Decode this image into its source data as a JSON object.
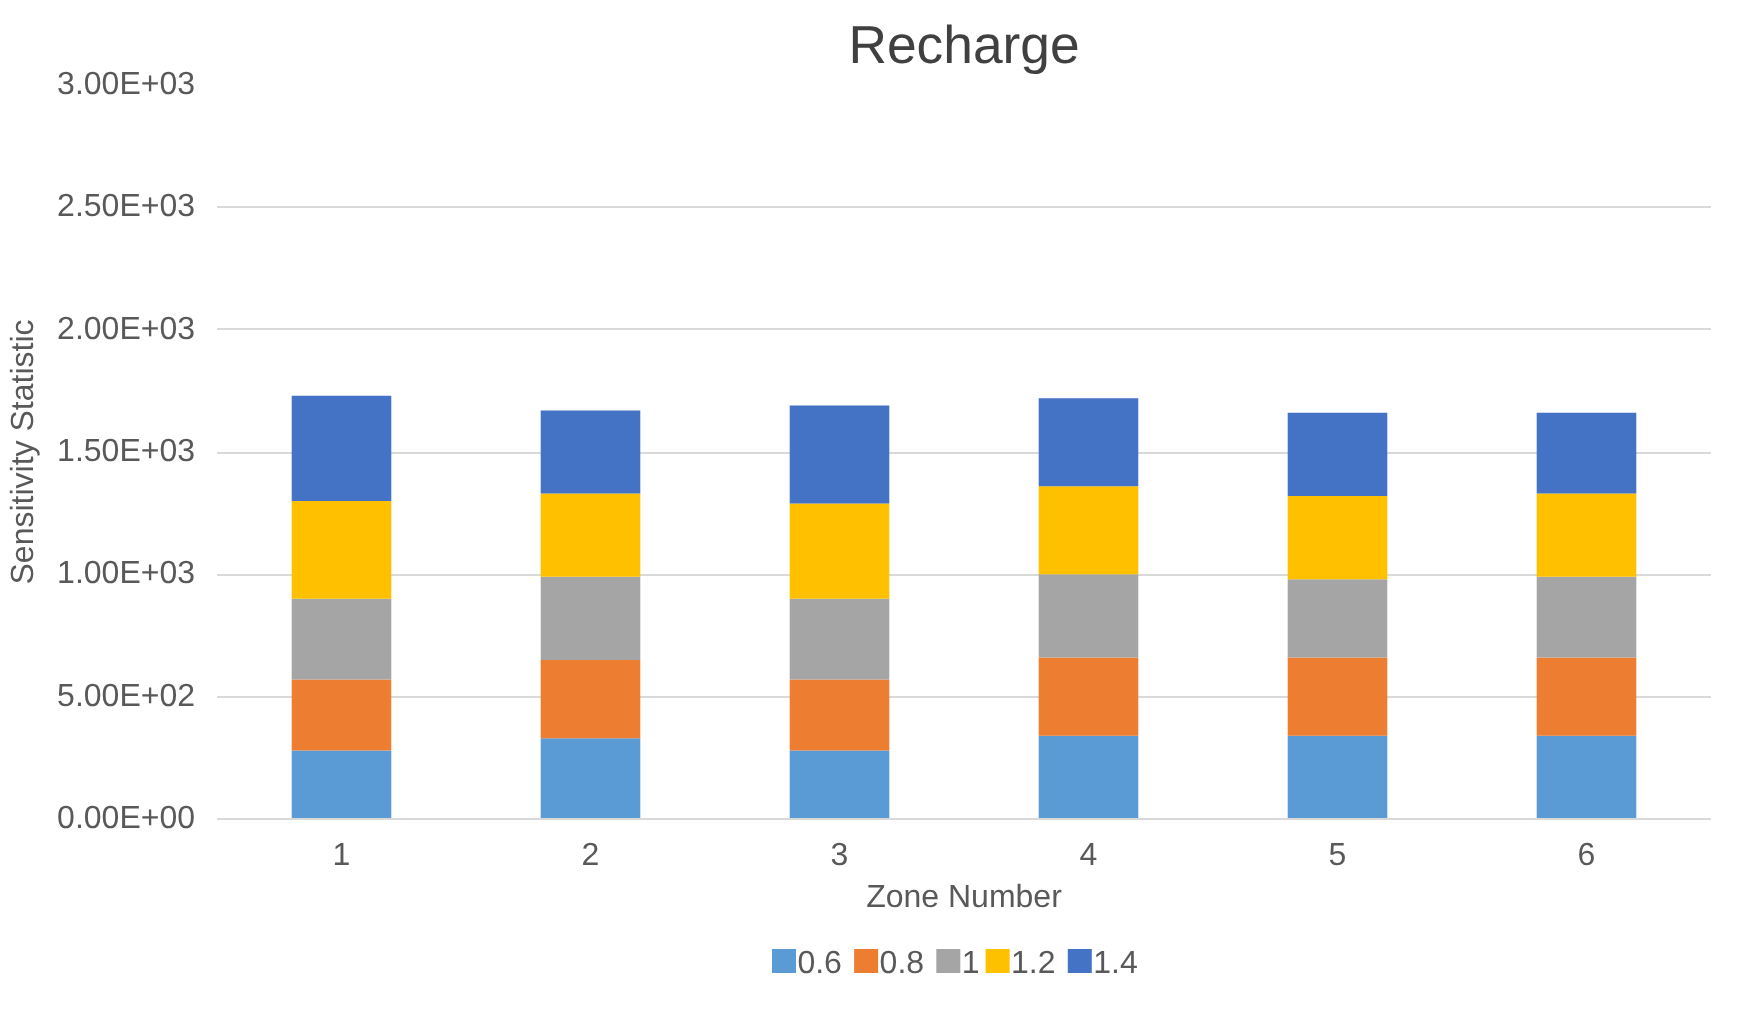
{
  "chart_data": {
    "type": "bar",
    "title": "Recharge",
    "xlabel": "Zone Number",
    "ylabel": "Sensitivity Statistic",
    "categories": [
      "1",
      "2",
      "3",
      "4",
      "5",
      "6"
    ],
    "stacked": true,
    "ylim": [
      0,
      3000
    ],
    "yticks": [
      {
        "value": 0,
        "label": "0.00E+00"
      },
      {
        "value": 500,
        "label": "5.00E+02"
      },
      {
        "value": 1000,
        "label": "1.00E+03"
      },
      {
        "value": 1500,
        "label": "1.50E+03"
      },
      {
        "value": 2000,
        "label": "2.00E+03"
      },
      {
        "value": 2500,
        "label": "2.50E+03"
      },
      {
        "value": 3000,
        "label": "3.00E+03"
      }
    ],
    "grid": "y",
    "legend": "bottom",
    "series": [
      {
        "name": "0.6",
        "color": "#5b9bd5",
        "values": [
          280,
          330,
          280,
          340,
          340,
          340
        ]
      },
      {
        "name": "0.8",
        "color": "#ed7d31",
        "values": [
          290,
          320,
          290,
          320,
          320,
          320
        ]
      },
      {
        "name": "1",
        "color": "#a5a5a5",
        "values": [
          330,
          340,
          330,
          340,
          320,
          330
        ]
      },
      {
        "name": "1.2",
        "color": "#ffc000",
        "values": [
          400,
          340,
          390,
          360,
          340,
          340
        ]
      },
      {
        "name": "1.4",
        "color": "#4472c4",
        "values": [
          430,
          340,
          400,
          360,
          340,
          330
        ]
      }
    ]
  }
}
